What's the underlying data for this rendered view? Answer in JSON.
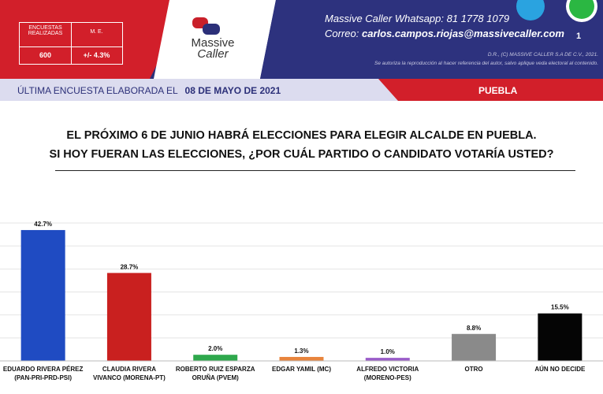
{
  "header": {
    "stats_table": {
      "headers": [
        "ENCUESTAS REALIZADAS",
        "M. E."
      ],
      "row": [
        "600",
        "+/- 4.3%"
      ]
    },
    "logo": {
      "line1": "Massive",
      "line2": "Caller"
    },
    "whatsapp_label": "Massive Caller Whatsapp:",
    "whatsapp_number": "81 1778 1079",
    "email_label": "Correo:",
    "email": "carlos.campos.riojas@massivecaller.com",
    "page_number": "1",
    "copyright": "D.R., (C) MASSIVE CALLER S.A DE C.V., 2021.",
    "notice": "Se autoriza la reproducción al hacer referencia del autor, salvo aplique veda electoral al contenido."
  },
  "survey_bar": {
    "label": "ÚLTIMA ENCUESTA ELABORADA EL",
    "date": "08 DE MAYO DE 2021",
    "place": "PUEBLA"
  },
  "chart_data": {
    "type": "bar",
    "title": "EL PRÓXIMO 6 DE JUNIO HABRÁ ELECCIONES PARA ELEGIR ALCALDE EN PUEBLA.\nSI HOY FUERAN LAS ELECCIONES, ¿POR CUÁL PARTIDO O CANDIDATO VOTARÍA USTED?",
    "categories": [
      "EDUARDO RIVERA PÉREZ\n(PAN-PRI-PRD-PSI)",
      "CLAUDIA RIVERA\nVIVANCO (MORENA-PT)",
      "ROBERTO RUIZ ESPARZA\nORUÑA (PVEM)",
      "EDGAR YAMIL (MC)",
      "ALFREDO VICTORIA\n(MORENO-PES)",
      "OTRO",
      "AÚN NO DECIDE"
    ],
    "values": [
      42.7,
      28.7,
      2.0,
      1.3,
      1.0,
      8.8,
      15.5
    ],
    "value_labels": [
      "42.7%",
      "28.7%",
      "2.0%",
      "1.3%",
      "1.0%",
      "8.8%",
      "15.5%"
    ],
    "colors": [
      "#1f4bc2",
      "#c9201f",
      "#2ea84c",
      "#e8843c",
      "#9a5cc9",
      "#8a8a8a",
      "#050505"
    ],
    "ylim": [
      0,
      45
    ],
    "yticks": [
      0,
      7.5,
      15,
      22.5,
      30,
      37.5,
      45
    ],
    "grid": true
  }
}
